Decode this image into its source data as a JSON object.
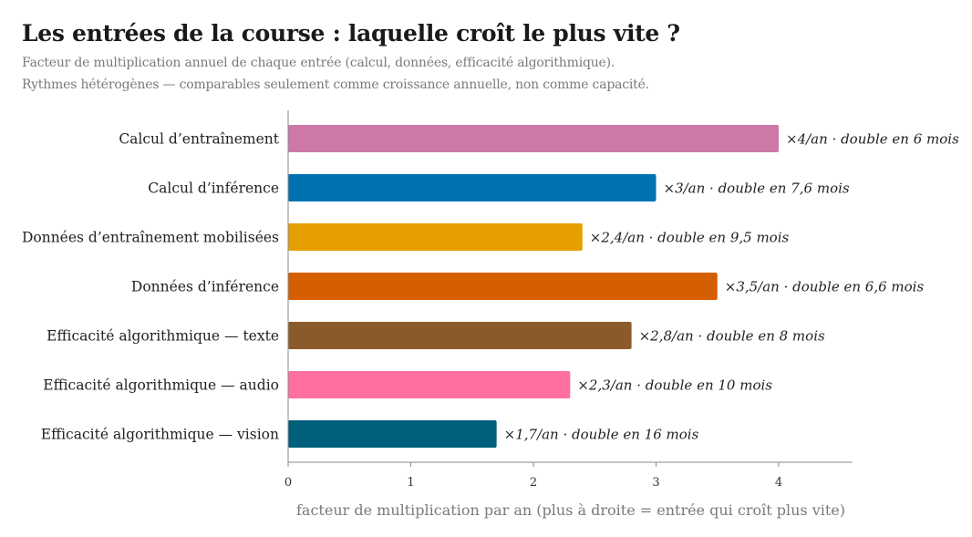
{
  "title": "Les entrées de la course : laquelle croît le plus vite ?",
  "subtitle_lines": [
    "Facteur de multiplication annuel de chaque entrée (calcul, données, efficacité algorithmique).",
    "Rythmes hétérogènes — comparables seulement comme croissance annuelle, non comme capacité."
  ],
  "chart_data": {
    "type": "bar",
    "orientation": "horizontal",
    "title": "Les entrées de la course : laquelle croît le plus vite ?",
    "xlabel": "facteur de multiplication par an (plus à droite = entrée qui croît plus vite)",
    "ylabel": "",
    "xlim": [
      0,
      4.6
    ],
    "xticks": [
      0,
      1,
      2,
      3,
      4
    ],
    "grid": false,
    "categories": [
      "Calcul d’entraînement",
      "Calcul d’inférence",
      "Données d’entraînement mobilisées",
      "Données d’inférence",
      "Efficacité algorithmique — texte",
      "Efficacité algorithmique — audio",
      "Efficacité algorithmique — vision"
    ],
    "values": [
      4,
      3,
      2.4,
      3.5,
      2.8,
      2.3,
      1.7
    ],
    "colors": [
      "#cc79a7",
      "#0072b2",
      "#e69f00",
      "#d55e00",
      "#8b5a2b",
      "#ff6f9f",
      "#005f7a"
    ],
    "data_labels": [
      "×4/an · double en 6 mois",
      "×3/an · double en 7,6 mois",
      "×2,4/an · double en 9,5 mois",
      "×3,5/an · double en 6,6 mois",
      "×2,8/an · double en 8 mois",
      "×2,3/an · double en 10 mois",
      "×1,7/an · double en 16 mois"
    ]
  }
}
